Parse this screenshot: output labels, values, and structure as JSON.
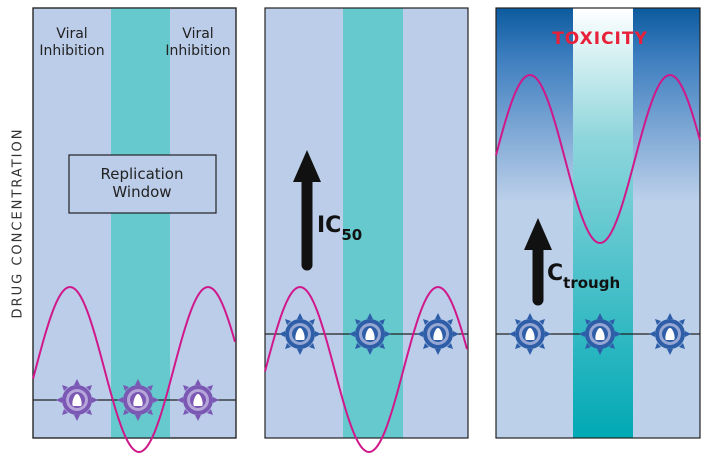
{
  "y_axis_label": "DRUG CONCENTRATION",
  "panels": [
    {
      "labels": [
        "Viral Inhibition",
        "Viral Inhibition"
      ],
      "box_label": [
        "Replication",
        "Window"
      ]
    },
    {
      "arrow_label": {
        "main": "IC",
        "sub": "50"
      }
    },
    {
      "title": "TOXICITY",
      "arrow_label": {
        "main": "C",
        "sub": "trough"
      }
    }
  ]
}
